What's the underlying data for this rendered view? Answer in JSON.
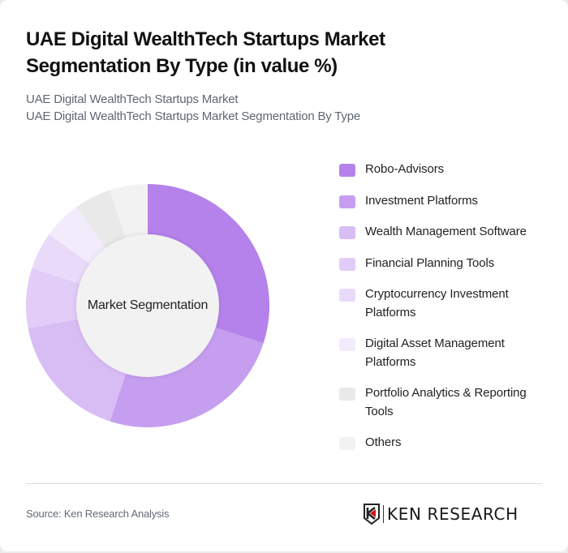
{
  "header": {
    "title": "UAE Digital WealthTech Startups Market Segmentation By Type (in value %)",
    "subtitle_line1": "UAE Digital WealthTech Startups Market",
    "subtitle_line2": "UAE Digital WealthTech Startups Market Segmentation By Type"
  },
  "chart": {
    "center_label": "Market Segmentation"
  },
  "chart_data": {
    "type": "pie",
    "subtype": "donut",
    "title": "UAE Digital WealthTech Startups Market Segmentation By Type (in value %)",
    "center_label": "Market Segmentation",
    "categories": [
      "Robo-Advisors",
      "Investment Platforms",
      "Wealth Management Software",
      "Financial Planning Tools",
      "Cryptocurrency Investment Platforms",
      "Digital Asset Management Platforms",
      "Portfolio Analytics & Reporting Tools",
      "Others"
    ],
    "values": [
      30,
      25,
      17,
      8,
      5,
      5,
      5,
      5
    ],
    "colors": [
      "#b482ea",
      "#c69ef0",
      "#d8bdf5",
      "#e2ccf8",
      "#e9dafa",
      "#f2ebfc",
      "#e9e9e9",
      "#f2f2f2"
    ],
    "legend_position": "right",
    "start_angle": 0,
    "direction": "clockwise"
  },
  "legend": {
    "items": [
      {
        "label": "Robo-Advisors",
        "color": "#b482ea"
      },
      {
        "label": "Investment Platforms",
        "color": "#c69ef0"
      },
      {
        "label": "Wealth Management Software",
        "color": "#d8bdf5"
      },
      {
        "label": "Financial Planning Tools",
        "color": "#e2ccf8"
      },
      {
        "label": "Cryptocurrency Investment Platforms",
        "color": "#e9dafa"
      },
      {
        "label": "Digital Asset Management Platforms",
        "color": "#f2ebfc"
      },
      {
        "label": "Portfolio Analytics & Reporting Tools",
        "color": "#e9e9e9"
      },
      {
        "label": "Others",
        "color": "#f2f2f2"
      }
    ]
  },
  "footer": {
    "source": "Source: Ken Research Analysis",
    "logo_text": "KEN RESEARCH",
    "logo_accent": "#d0121b"
  }
}
